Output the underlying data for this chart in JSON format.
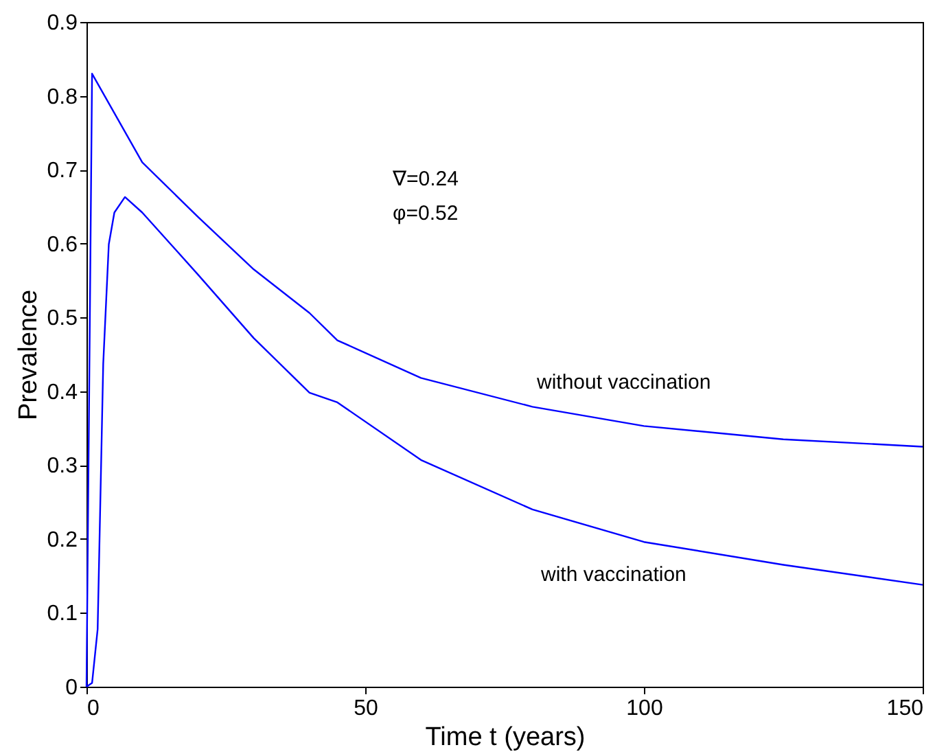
{
  "chart_data": {
    "type": "line",
    "xlabel": "Time t (years)",
    "ylabel": "Prevalence",
    "xlim": [
      0,
      150
    ],
    "xticks": [
      0,
      50,
      100,
      150
    ],
    "ylim": [
      0,
      0.9
    ],
    "yticks": [
      0,
      0.1,
      0.2,
      0.3,
      0.4,
      0.5,
      0.6,
      0.7,
      0.8,
      0.9
    ],
    "grid": false,
    "marker": "none",
    "line_style": "solid",
    "series": [
      {
        "color": "#0000ff",
        "x": [
          0,
          1,
          10,
          20,
          30,
          40,
          45,
          60,
          80,
          100,
          125,
          150
        ],
        "values": [
          0,
          0.83,
          0.71,
          0.636,
          0.565,
          0.506,
          0.469,
          0.418,
          0.379,
          0.353,
          0.335,
          0.325
        ]
      },
      {
        "color": "#0000ff",
        "x": [
          0,
          1,
          2,
          3,
          4,
          5,
          6.9,
          10,
          20,
          30,
          40,
          45,
          60,
          80,
          100,
          125,
          150
        ],
        "values": [
          0,
          0.005,
          0.078,
          0.437,
          0.599,
          0.642,
          0.663,
          0.642,
          0.558,
          0.472,
          0.398,
          0.385,
          0.307,
          0.24,
          0.196,
          0.165,
          0.138
        ]
      }
    ],
    "annotations": [
      "∇=0.24",
      "φ=0.52",
      "without vaccination",
      "with vaccination"
    ]
  }
}
